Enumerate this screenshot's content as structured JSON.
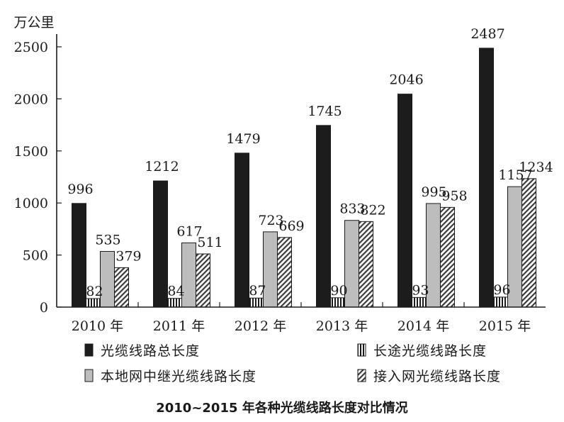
{
  "chart_data": {
    "type": "bar",
    "unit_label": "万公里",
    "caption": "2010~2015 年各种光缆线路长度对比情况",
    "categories": [
      "2010 年",
      "2011 年",
      "2012 年",
      "2013 年",
      "2014 年",
      "2015 年"
    ],
    "ylim": [
      0,
      2500
    ],
    "yticks": [
      0,
      500,
      1000,
      1500,
      2000,
      2500
    ],
    "grid": false,
    "legend_position": "bottom",
    "series": [
      {
        "name": "光缆线路总长度",
        "pattern": "solid-black",
        "values": [
          996,
          1212,
          1479,
          1745,
          2046,
          2487
        ]
      },
      {
        "name": "长途光缆线路长度",
        "pattern": "vertical-stripes",
        "values": [
          82,
          84,
          87,
          90,
          93,
          96
        ]
      },
      {
        "name": "本地网中继光缆线路长度",
        "pattern": "solid-gray",
        "values": [
          535,
          617,
          723,
          833,
          995,
          1157
        ]
      },
      {
        "name": "接入网光缆线路长度",
        "pattern": "diagonal-hatch",
        "values": [
          379,
          511,
          669,
          822,
          958,
          1234
        ]
      }
    ]
  }
}
